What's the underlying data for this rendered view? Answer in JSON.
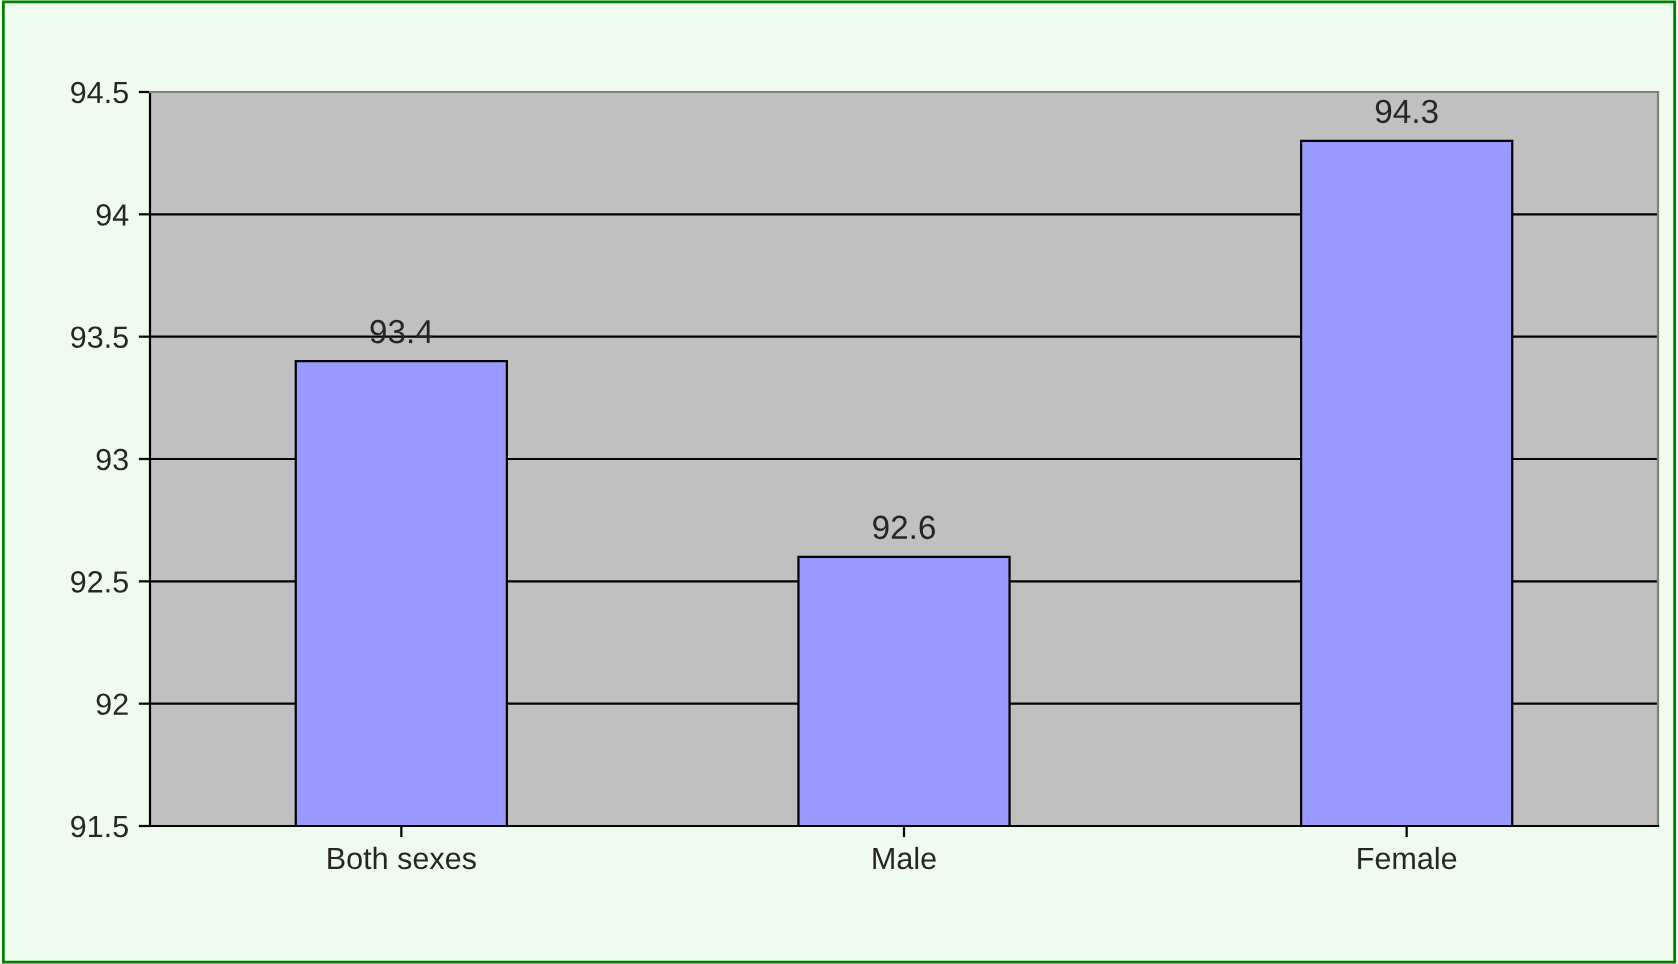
{
  "chart_data": {
    "type": "bar",
    "categories": [
      "Both sexes",
      "Male",
      "Female"
    ],
    "values": [
      93.4,
      92.6,
      94.3
    ],
    "color": "#9999ff",
    "ylim": [
      91.5,
      94.5
    ],
    "yticks": [
      91.5,
      92,
      92.5,
      93,
      93.5,
      94,
      94.5
    ],
    "grid": "y",
    "data_labels": true
  }
}
